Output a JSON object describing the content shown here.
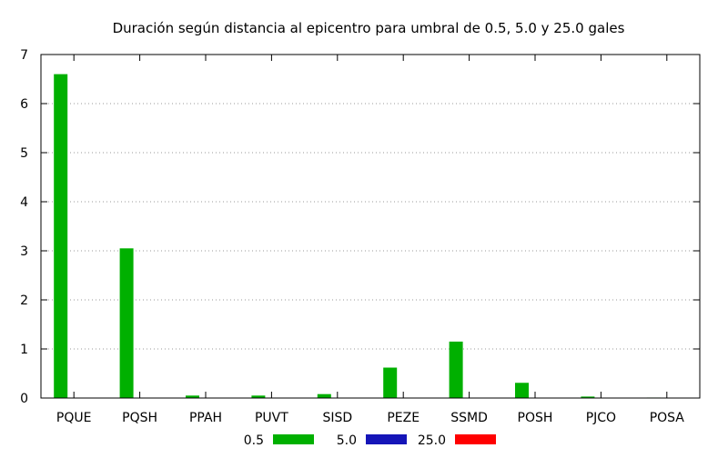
{
  "chart_data": {
    "type": "bar",
    "title": "Duración según distancia al epicentro para umbral de 0.5, 5.0 y 25.0 gales",
    "xlabel": "",
    "ylabel": "",
    "categories": [
      "PQUE",
      "PQSH",
      "PPAH",
      "PUVT",
      "SISD",
      "PEZE",
      "SSMD",
      "POSH",
      "PJCO",
      "POSA"
    ],
    "series": [
      {
        "name": "0.5",
        "color": "#00b000",
        "values": [
          6.6,
          3.05,
          0.05,
          0.05,
          0.08,
          0.62,
          1.15,
          0.31,
          0.03,
          0.01
        ]
      },
      {
        "name": "5.0",
        "color": "#1515b8",
        "values": [
          0,
          0,
          0,
          0,
          0,
          0,
          0,
          0,
          0,
          0
        ]
      },
      {
        "name": "25.0",
        "color": "#ff0000",
        "values": [
          0,
          0,
          0,
          0,
          0,
          0,
          0,
          0,
          0,
          0
        ]
      }
    ],
    "ylim": [
      0,
      7
    ],
    "yticks": [
      "0",
      "1",
      "2",
      "3",
      "4",
      "5",
      "6",
      "7"
    ],
    "grid": "horizontal dotted",
    "legend": "bottom"
  }
}
